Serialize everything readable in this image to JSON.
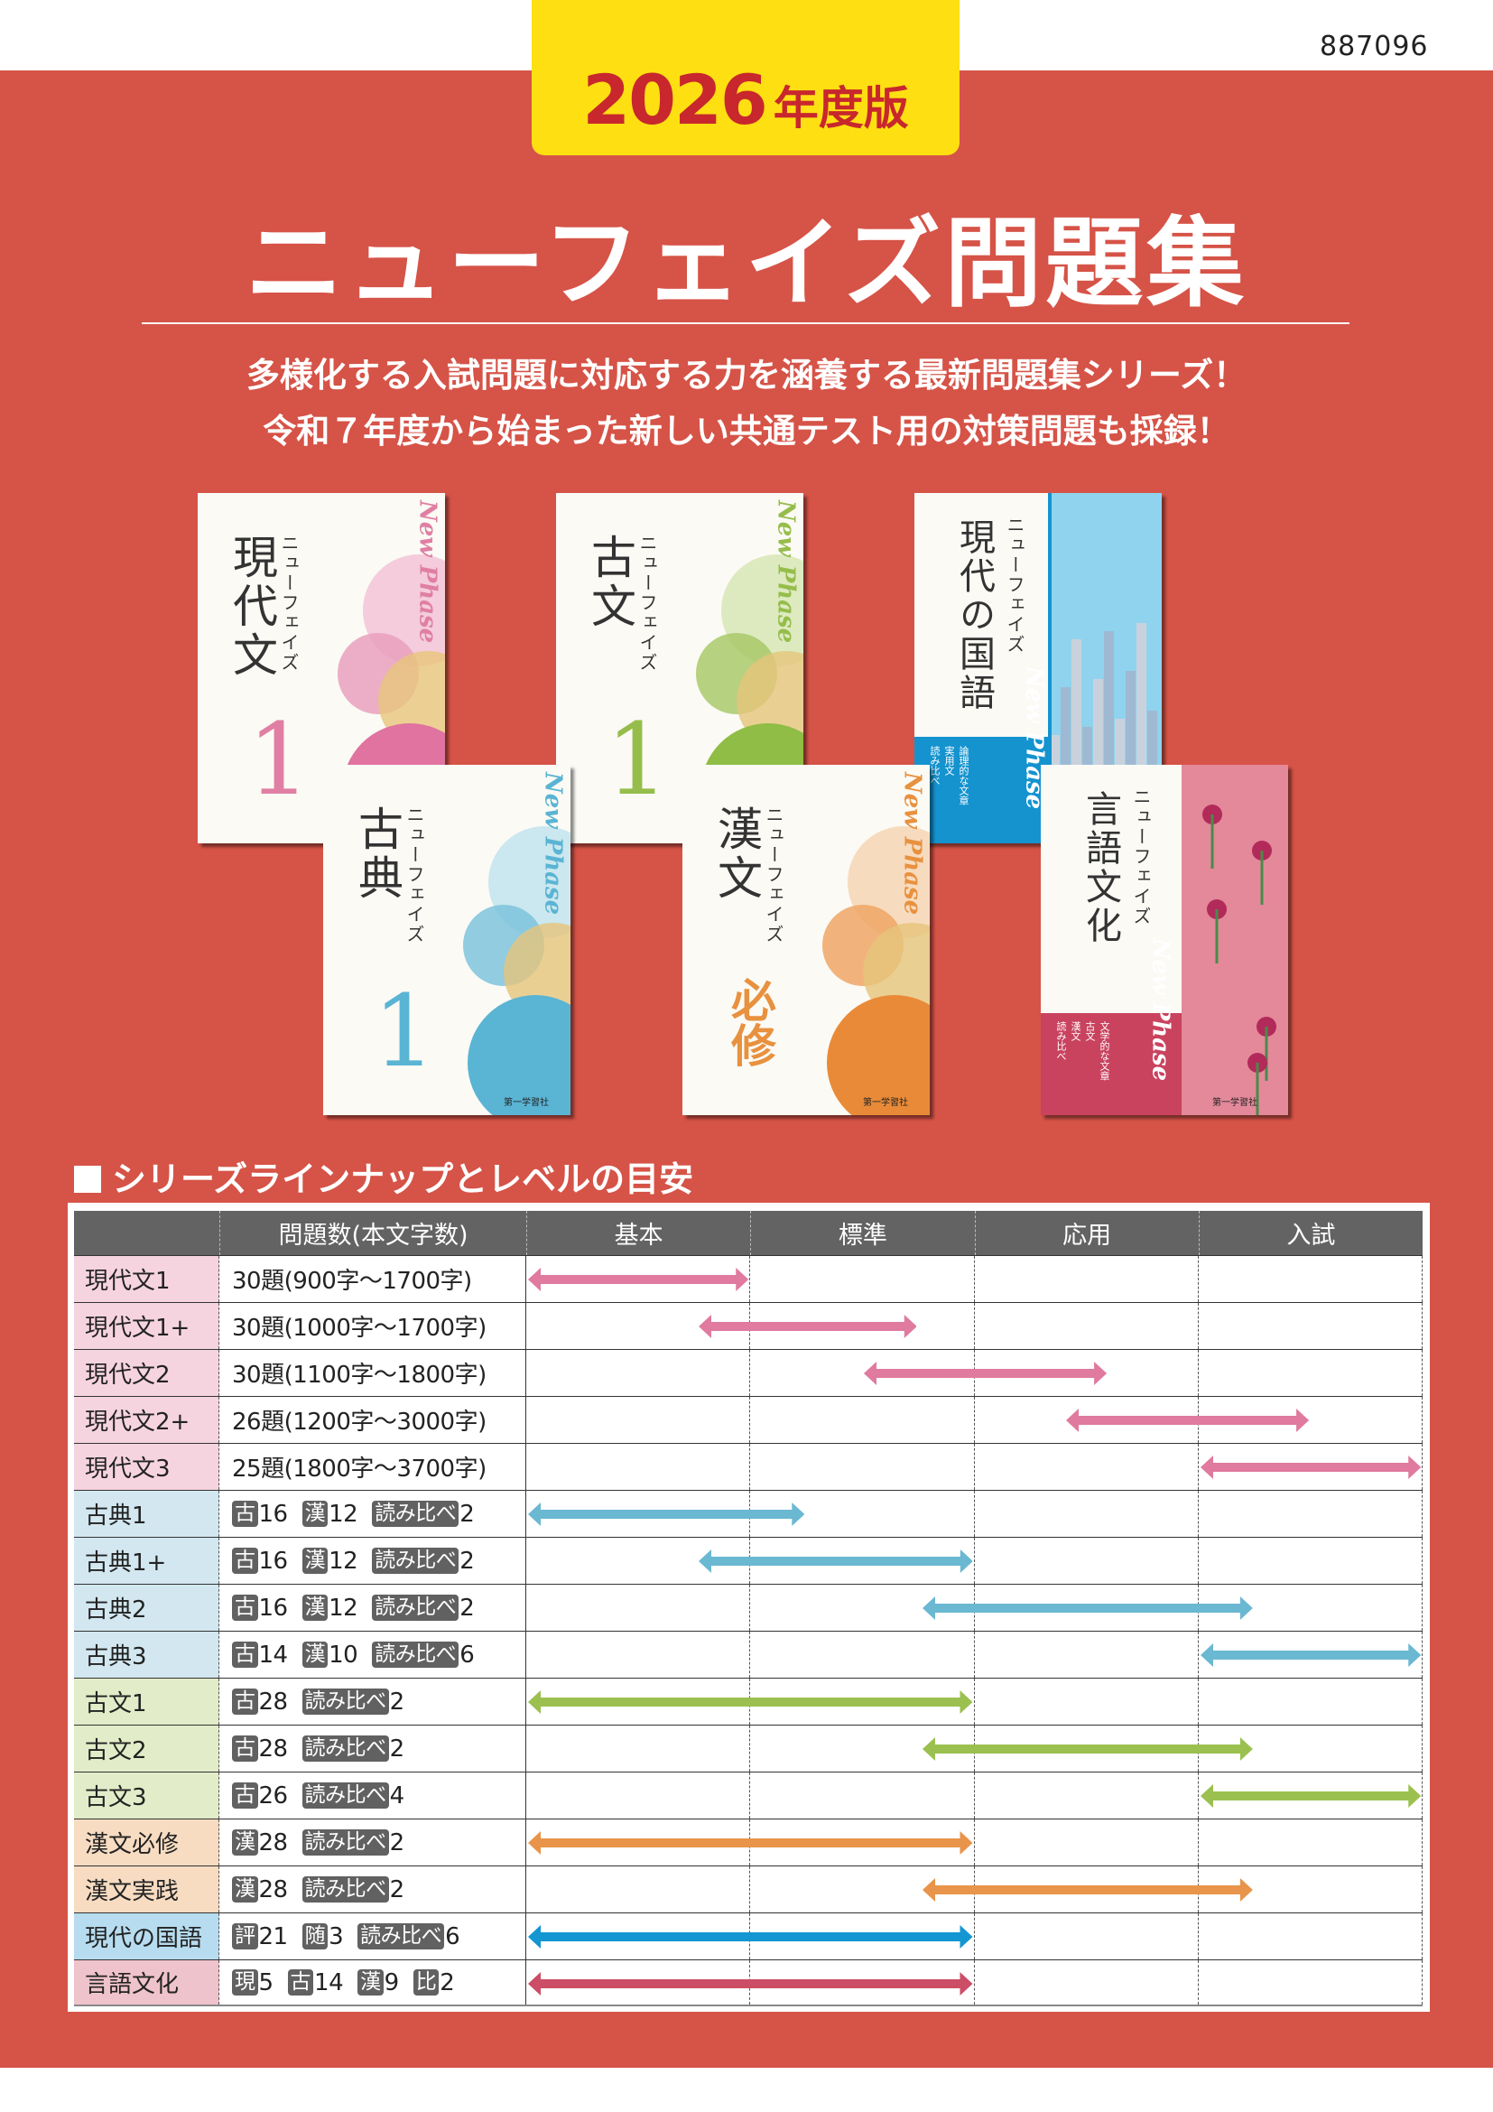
{
  "header": {
    "code": "887096",
    "edition_year": "2026",
    "edition_suffix": "年度版",
    "title": "ニューフェイズ問題集",
    "subtitle_lines": [
      "多様化する入試問題に対応する力を涵養する最新問題集シリーズ！",
      "令和７年度から始まった新しい共通テスト用の対策問題も採録！"
    ]
  },
  "covers": [
    {
      "title": "現代文",
      "series": "ニューフェイズ",
      "brand": "New Phase",
      "number": "1",
      "color": "#e07fa3",
      "circles": [
        "#f3c0d4",
        "#e9a0bd",
        "#e8c57a",
        "#e0739f"
      ]
    },
    {
      "title": "古文",
      "series": "ニューフェイズ",
      "brand": "New Phase",
      "number": "1",
      "color": "#96bd4b",
      "circles": [
        "#d6e6b3",
        "#a9c96a",
        "#e6c47a",
        "#8fbd45"
      ]
    },
    {
      "title": "現代の国語",
      "series": "ニューフェイズ",
      "brand": "New Phase",
      "band_items": [
        "論理的な文章",
        "実用文",
        "読み比べ"
      ],
      "color": "#1593cf"
    },
    {
      "title": "古典",
      "series": "ニューフェイズ",
      "brand": "New Phase",
      "number": "1",
      "publisher": "第一学習社",
      "color": "#5ab4d4",
      "circles": [
        "#bfe2ee",
        "#7ec3dc",
        "#e6c47a",
        "#5ab4d4"
      ]
    },
    {
      "title": "漢文",
      "series": "ニューフェイズ",
      "brand": "New Phase",
      "number": "必修",
      "publisher": "第一学習社",
      "color": "#e8913f",
      "circles": [
        "#f6d3b0",
        "#eea665",
        "#e6c47a",
        "#e98a38"
      ]
    },
    {
      "title": "言語文化",
      "series": "ニューフェイズ",
      "brand": "New Phase",
      "band_items": [
        "文学的な文章",
        "古文",
        "漢文",
        "読み比べ"
      ],
      "publisher": "第一学習社",
      "color": "#c9435f"
    }
  ],
  "section_title": "シリーズラインナップとレベルの目安",
  "table": {
    "headers": [
      "",
      "問題数(本文字数)",
      "基本",
      "標準",
      "応用",
      "入試"
    ],
    "rows": [
      {
        "name": "現代文1",
        "bg": "#f6d4df",
        "qty_text": "30題(900字〜1700字)",
        "level_from": 0,
        "level_to": 1.0,
        "arrow_color": "#e07a9f"
      },
      {
        "name": "現代文1+",
        "bg": "#f6d4df",
        "qty_text": "30題(1000字〜1700字)",
        "level_from": 0.76,
        "level_to": 1.75,
        "arrow_color": "#e07a9f"
      },
      {
        "name": "現代文2",
        "bg": "#f6d4df",
        "qty_text": "30題(1100字〜1800字)",
        "level_from": 1.5,
        "level_to": 2.6,
        "arrow_color": "#e07a9f"
      },
      {
        "name": "現代文2+",
        "bg": "#f6d4df",
        "qty_text": "26題(1200字〜3000字)",
        "level_from": 2.4,
        "level_to": 3.5,
        "arrow_color": "#e07a9f"
      },
      {
        "name": "現代文3",
        "bg": "#f6d4df",
        "qty_text": "25題(1800字〜3700字)",
        "level_from": 3.0,
        "level_to": 4.0,
        "arrow_color": "#e07a9f"
      },
      {
        "name": "古典1",
        "bg": "#d3e7f0",
        "counts": [
          {
            "tag": "古",
            "value": "16"
          },
          {
            "tag": "漢",
            "value": "12"
          },
          {
            "tag": "読み比べ",
            "value": "2"
          }
        ],
        "level_from": 0,
        "level_to": 1.25,
        "arrow_color": "#6ab8d2"
      },
      {
        "name": "古典1+",
        "bg": "#d3e7f0",
        "counts": [
          {
            "tag": "古",
            "value": "16"
          },
          {
            "tag": "漢",
            "value": "12"
          },
          {
            "tag": "読み比べ",
            "value": "2"
          }
        ],
        "level_from": 0.76,
        "level_to": 2.0,
        "arrow_color": "#6ab8d2"
      },
      {
        "name": "古典2",
        "bg": "#d3e7f0",
        "counts": [
          {
            "tag": "古",
            "value": "16"
          },
          {
            "tag": "漢",
            "value": "12"
          },
          {
            "tag": "読み比べ",
            "value": "2"
          }
        ],
        "level_from": 1.76,
        "level_to": 3.25,
        "arrow_color": "#6ab8d2"
      },
      {
        "name": "古典3",
        "bg": "#d3e7f0",
        "counts": [
          {
            "tag": "古",
            "value": "14"
          },
          {
            "tag": "漢",
            "value": "10"
          },
          {
            "tag": "読み比べ",
            "value": "6"
          }
        ],
        "level_from": 3.0,
        "level_to": 4.0,
        "arrow_color": "#6ab8d2"
      },
      {
        "name": "古文1",
        "bg": "#e2ecc8",
        "counts": [
          {
            "tag": "古",
            "value": "28"
          },
          {
            "tag": "読み比べ",
            "value": "2"
          }
        ],
        "level_from": 0,
        "level_to": 2.0,
        "arrow_color": "#9bc04f"
      },
      {
        "name": "古文2",
        "bg": "#e2ecc8",
        "counts": [
          {
            "tag": "古",
            "value": "28"
          },
          {
            "tag": "読み比べ",
            "value": "2"
          }
        ],
        "level_from": 1.76,
        "level_to": 3.25,
        "arrow_color": "#9bc04f"
      },
      {
        "name": "古文3",
        "bg": "#e2ecc8",
        "counts": [
          {
            "tag": "古",
            "value": "26"
          },
          {
            "tag": "読み比べ",
            "value": "4"
          }
        ],
        "level_from": 3.0,
        "level_to": 4.0,
        "arrow_color": "#9bc04f"
      },
      {
        "name": "漢文必修",
        "bg": "#f7dcc2",
        "counts": [
          {
            "tag": "漢",
            "value": "28"
          },
          {
            "tag": "読み比べ",
            "value": "2"
          }
        ],
        "level_from": 0,
        "level_to": 2.0,
        "arrow_color": "#e8944a"
      },
      {
        "name": "漢文実践",
        "bg": "#f7dcc2",
        "counts": [
          {
            "tag": "漢",
            "value": "28"
          },
          {
            "tag": "読み比べ",
            "value": "2"
          }
        ],
        "level_from": 1.76,
        "level_to": 3.25,
        "arrow_color": "#e8944a"
      },
      {
        "name": "現代の国語",
        "bg": "#b7dcef",
        "counts": [
          {
            "tag": "評",
            "value": "21"
          },
          {
            "tag": "随",
            "value": "3"
          },
          {
            "tag": "読み比べ",
            "value": "6"
          }
        ],
        "level_from": 0,
        "level_to": 2.0,
        "arrow_color": "#1396d2"
      },
      {
        "name": "言語文化",
        "bg": "#efc3cb",
        "counts": [
          {
            "tag": "現",
            "value": "5"
          },
          {
            "tag": "古",
            "value": "14"
          },
          {
            "tag": "漢",
            "value": "9"
          },
          {
            "tag": "比",
            "value": "2"
          }
        ],
        "level_from": 0,
        "level_to": 2.0,
        "arrow_color": "#cc4d66"
      }
    ]
  }
}
